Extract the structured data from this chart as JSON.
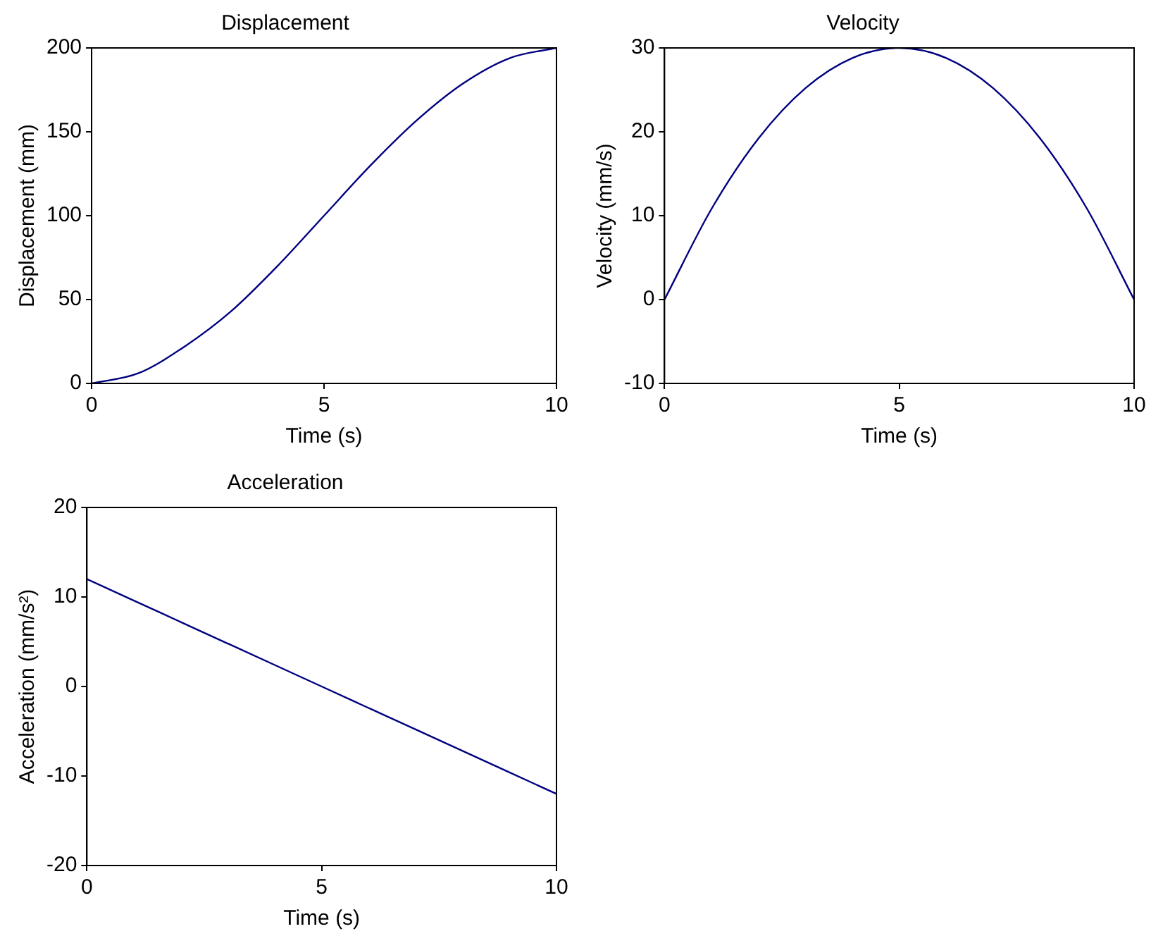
{
  "chart_data": [
    {
      "type": "line",
      "title": "Displacement",
      "xlabel": "Time (s)",
      "ylabel": "Displacement (mm)",
      "x": [
        0,
        1,
        2,
        3,
        4,
        5,
        6,
        7,
        8,
        9,
        10
      ],
      "series": [
        {
          "color": "#000080",
          "values": [
            0,
            6,
            22,
            43,
            70,
            100,
            130,
            157,
            179,
            194,
            200
          ]
        }
      ],
      "xlim": [
        0,
        10
      ],
      "xticks": [
        0,
        5,
        10
      ],
      "ylim": [
        0,
        200
      ],
      "yticks": [
        0,
        50,
        100,
        150,
        200
      ],
      "marker": "none",
      "grid": false,
      "legend": false
    },
    {
      "type": "line",
      "title": "Velocity",
      "xlabel": "Time (s)",
      "ylabel": "Velocity (mm/s)",
      "x": [
        0,
        1,
        2,
        3,
        4,
        5,
        6,
        7,
        8,
        9,
        10
      ],
      "series": [
        {
          "color": "#000080",
          "values": [
            0,
            10.8,
            19.2,
            25.2,
            28.8,
            30,
            28.8,
            25.2,
            19.2,
            10.8,
            0
          ]
        }
      ],
      "xlim": [
        0,
        10
      ],
      "xticks": [
        0,
        5,
        10
      ],
      "ylim": [
        -10,
        30
      ],
      "yticks": [
        -10,
        0,
        10,
        20,
        30
      ],
      "marker": "none",
      "grid": false,
      "legend": false
    },
    {
      "type": "line",
      "title": "Acceleration",
      "xlabel": "Time (s)",
      "ylabel": "Acceleration (mm/s²)",
      "x": [
        0,
        1,
        2,
        3,
        4,
        5,
        6,
        7,
        8,
        9,
        10
      ],
      "series": [
        {
          "color": "#000080",
          "values": [
            12,
            9.6,
            7.2,
            4.8,
            2.4,
            0,
            -2.4,
            -4.8,
            -7.2,
            -9.6,
            -12
          ]
        }
      ],
      "xlim": [
        0,
        10
      ],
      "xticks": [
        0,
        5,
        10
      ],
      "ylim": [
        -20,
        20
      ],
      "yticks": [
        -20,
        -10,
        0,
        10,
        20
      ],
      "marker": "none",
      "grid": false,
      "legend": false
    }
  ]
}
